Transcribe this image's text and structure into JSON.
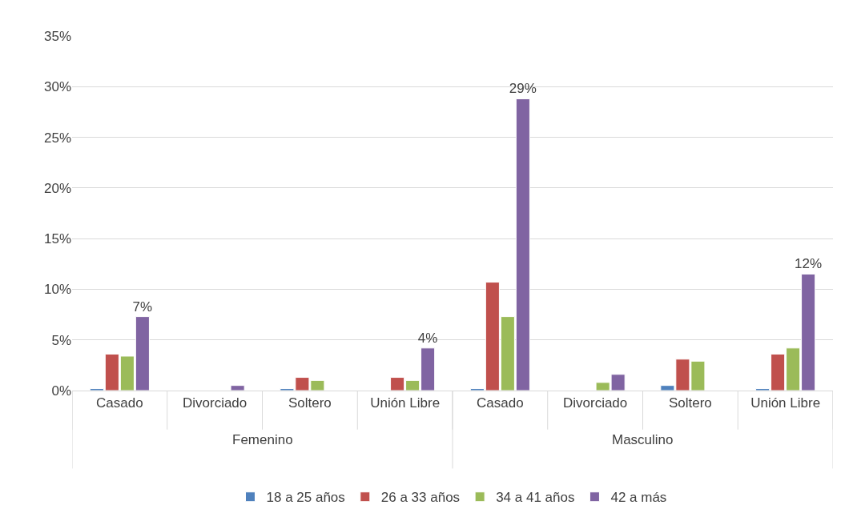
{
  "chart_data": {
    "type": "bar",
    "categories": [
      "Casado",
      "Divorciado",
      "Soltero",
      "Unión Libre",
      "Casado",
      "Divorciado",
      "Soltero",
      "Unión Libre"
    ],
    "annotations": [
      "Femenino",
      "Masculino"
    ],
    "series": [
      {
        "name": "18 a 25 años",
        "color": "#4f81bd",
        "values": [
          0.2,
          null,
          0.2,
          null,
          0.2,
          null,
          0.5,
          0.2
        ]
      },
      {
        "name": "26 a 33 años",
        "color": "#c0504d",
        "values": [
          3.6,
          null,
          1.3,
          1.3,
          10.7,
          null,
          3.1,
          3.6
        ]
      },
      {
        "name": "34 a 41 años",
        "color": "#9bbb59",
        "values": [
          3.4,
          null,
          1.0,
          1.0,
          7.3,
          0.8,
          2.9,
          4.2
        ]
      },
      {
        "name": "42 a más",
        "color": "#8064a2",
        "values": [
          7.3,
          0.5,
          null,
          4.2,
          28.8,
          1.6,
          null,
          11.5
        ],
        "value_labels": [
          "7%",
          null,
          null,
          "4%",
          "29%",
          null,
          null,
          "12%"
        ]
      }
    ],
    "ylim": [
      0,
      35
    ],
    "yticks": [
      {
        "value": 0,
        "label": "0%"
      },
      {
        "value": 5,
        "label": "5%"
      },
      {
        "value": 10,
        "label": "10%"
      },
      {
        "value": 15,
        "label": "15%"
      },
      {
        "value": 20,
        "label": "20%"
      },
      {
        "value": 25,
        "label": "25%"
      },
      {
        "value": 30,
        "label": "30%"
      },
      {
        "value": 35,
        "label": "35%"
      }
    ],
    "grid": "y",
    "legend": "bottom"
  }
}
